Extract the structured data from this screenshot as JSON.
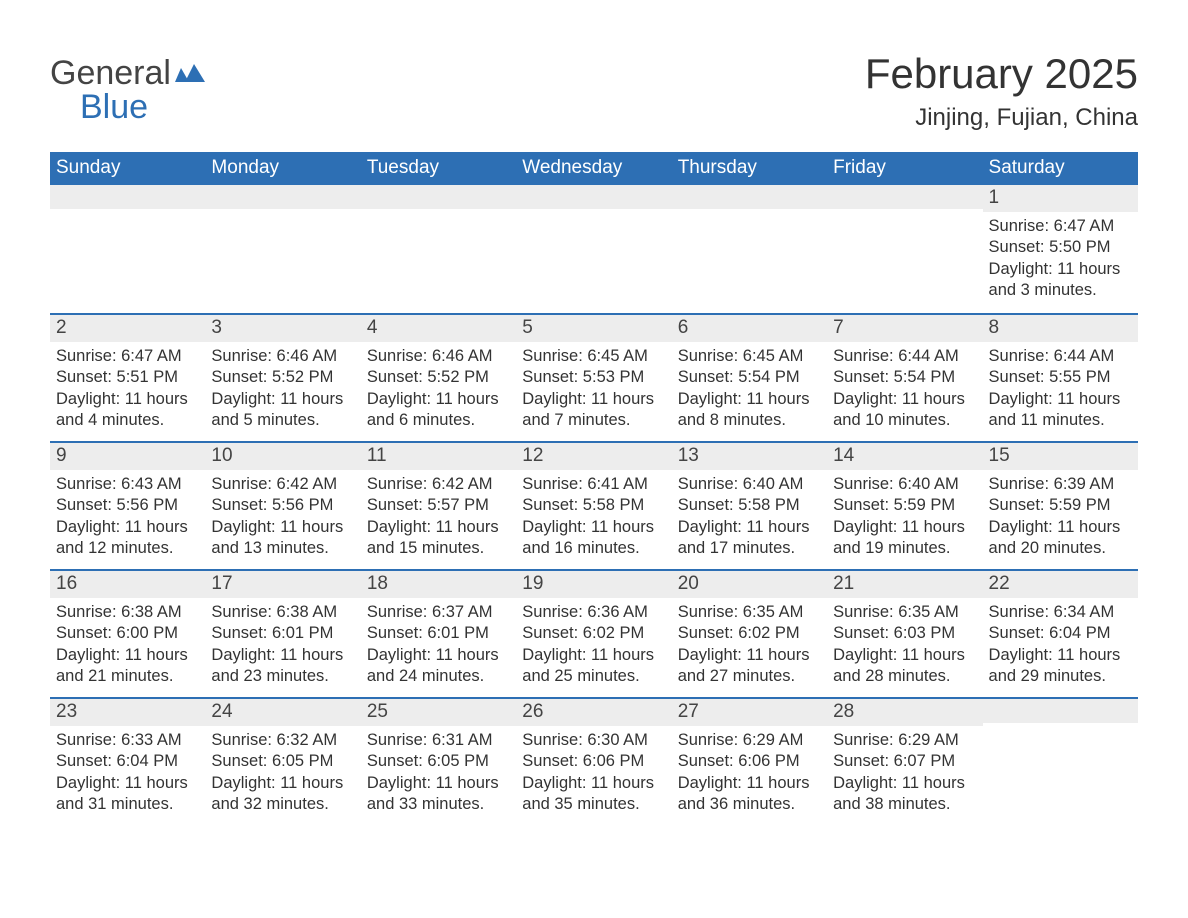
{
  "logo": {
    "text_general": "General",
    "text_blue": "Blue",
    "accent_color": "#2d6fb4",
    "text_color": "#444444"
  },
  "title": "February 2025",
  "location": "Jinjing, Fujian, China",
  "colors": {
    "header_bg": "#2d6fb4",
    "header_fg": "#ffffff",
    "day_bar_bg": "#ededed",
    "week_divider": "#2d6fb4",
    "body_text": "#333333",
    "page_bg": "#ffffff"
  },
  "weekdays": [
    "Sunday",
    "Monday",
    "Tuesday",
    "Wednesday",
    "Thursday",
    "Friday",
    "Saturday"
  ],
  "weeks": [
    [
      {
        "empty": true
      },
      {
        "empty": true
      },
      {
        "empty": true
      },
      {
        "empty": true
      },
      {
        "empty": true
      },
      {
        "empty": true
      },
      {
        "num": "1",
        "sunrise": "Sunrise: 6:47 AM",
        "sunset": "Sunset: 5:50 PM",
        "daylight": "Daylight: 11 hours and 3 minutes."
      }
    ],
    [
      {
        "num": "2",
        "sunrise": "Sunrise: 6:47 AM",
        "sunset": "Sunset: 5:51 PM",
        "daylight": "Daylight: 11 hours and 4 minutes."
      },
      {
        "num": "3",
        "sunrise": "Sunrise: 6:46 AM",
        "sunset": "Sunset: 5:52 PM",
        "daylight": "Daylight: 11 hours and 5 minutes."
      },
      {
        "num": "4",
        "sunrise": "Sunrise: 6:46 AM",
        "sunset": "Sunset: 5:52 PM",
        "daylight": "Daylight: 11 hours and 6 minutes."
      },
      {
        "num": "5",
        "sunrise": "Sunrise: 6:45 AM",
        "sunset": "Sunset: 5:53 PM",
        "daylight": "Daylight: 11 hours and 7 minutes."
      },
      {
        "num": "6",
        "sunrise": "Sunrise: 6:45 AM",
        "sunset": "Sunset: 5:54 PM",
        "daylight": "Daylight: 11 hours and 8 minutes."
      },
      {
        "num": "7",
        "sunrise": "Sunrise: 6:44 AM",
        "sunset": "Sunset: 5:54 PM",
        "daylight": "Daylight: 11 hours and 10 minutes."
      },
      {
        "num": "8",
        "sunrise": "Sunrise: 6:44 AM",
        "sunset": "Sunset: 5:55 PM",
        "daylight": "Daylight: 11 hours and 11 minutes."
      }
    ],
    [
      {
        "num": "9",
        "sunrise": "Sunrise: 6:43 AM",
        "sunset": "Sunset: 5:56 PM",
        "daylight": "Daylight: 11 hours and 12 minutes."
      },
      {
        "num": "10",
        "sunrise": "Sunrise: 6:42 AM",
        "sunset": "Sunset: 5:56 PM",
        "daylight": "Daylight: 11 hours and 13 minutes."
      },
      {
        "num": "11",
        "sunrise": "Sunrise: 6:42 AM",
        "sunset": "Sunset: 5:57 PM",
        "daylight": "Daylight: 11 hours and 15 minutes."
      },
      {
        "num": "12",
        "sunrise": "Sunrise: 6:41 AM",
        "sunset": "Sunset: 5:58 PM",
        "daylight": "Daylight: 11 hours and 16 minutes."
      },
      {
        "num": "13",
        "sunrise": "Sunrise: 6:40 AM",
        "sunset": "Sunset: 5:58 PM",
        "daylight": "Daylight: 11 hours and 17 minutes."
      },
      {
        "num": "14",
        "sunrise": "Sunrise: 6:40 AM",
        "sunset": "Sunset: 5:59 PM",
        "daylight": "Daylight: 11 hours and 19 minutes."
      },
      {
        "num": "15",
        "sunrise": "Sunrise: 6:39 AM",
        "sunset": "Sunset: 5:59 PM",
        "daylight": "Daylight: 11 hours and 20 minutes."
      }
    ],
    [
      {
        "num": "16",
        "sunrise": "Sunrise: 6:38 AM",
        "sunset": "Sunset: 6:00 PM",
        "daylight": "Daylight: 11 hours and 21 minutes."
      },
      {
        "num": "17",
        "sunrise": "Sunrise: 6:38 AM",
        "sunset": "Sunset: 6:01 PM",
        "daylight": "Daylight: 11 hours and 23 minutes."
      },
      {
        "num": "18",
        "sunrise": "Sunrise: 6:37 AM",
        "sunset": "Sunset: 6:01 PM",
        "daylight": "Daylight: 11 hours and 24 minutes."
      },
      {
        "num": "19",
        "sunrise": "Sunrise: 6:36 AM",
        "sunset": "Sunset: 6:02 PM",
        "daylight": "Daylight: 11 hours and 25 minutes."
      },
      {
        "num": "20",
        "sunrise": "Sunrise: 6:35 AM",
        "sunset": "Sunset: 6:02 PM",
        "daylight": "Daylight: 11 hours and 27 minutes."
      },
      {
        "num": "21",
        "sunrise": "Sunrise: 6:35 AM",
        "sunset": "Sunset: 6:03 PM",
        "daylight": "Daylight: 11 hours and 28 minutes."
      },
      {
        "num": "22",
        "sunrise": "Sunrise: 6:34 AM",
        "sunset": "Sunset: 6:04 PM",
        "daylight": "Daylight: 11 hours and 29 minutes."
      }
    ],
    [
      {
        "num": "23",
        "sunrise": "Sunrise: 6:33 AM",
        "sunset": "Sunset: 6:04 PM",
        "daylight": "Daylight: 11 hours and 31 minutes."
      },
      {
        "num": "24",
        "sunrise": "Sunrise: 6:32 AM",
        "sunset": "Sunset: 6:05 PM",
        "daylight": "Daylight: 11 hours and 32 minutes."
      },
      {
        "num": "25",
        "sunrise": "Sunrise: 6:31 AM",
        "sunset": "Sunset: 6:05 PM",
        "daylight": "Daylight: 11 hours and 33 minutes."
      },
      {
        "num": "26",
        "sunrise": "Sunrise: 6:30 AM",
        "sunset": "Sunset: 6:06 PM",
        "daylight": "Daylight: 11 hours and 35 minutes."
      },
      {
        "num": "27",
        "sunrise": "Sunrise: 6:29 AM",
        "sunset": "Sunset: 6:06 PM",
        "daylight": "Daylight: 11 hours and 36 minutes."
      },
      {
        "num": "28",
        "sunrise": "Sunrise: 6:29 AM",
        "sunset": "Sunset: 6:07 PM",
        "daylight": "Daylight: 11 hours and 38 minutes."
      },
      {
        "empty": true
      }
    ]
  ]
}
